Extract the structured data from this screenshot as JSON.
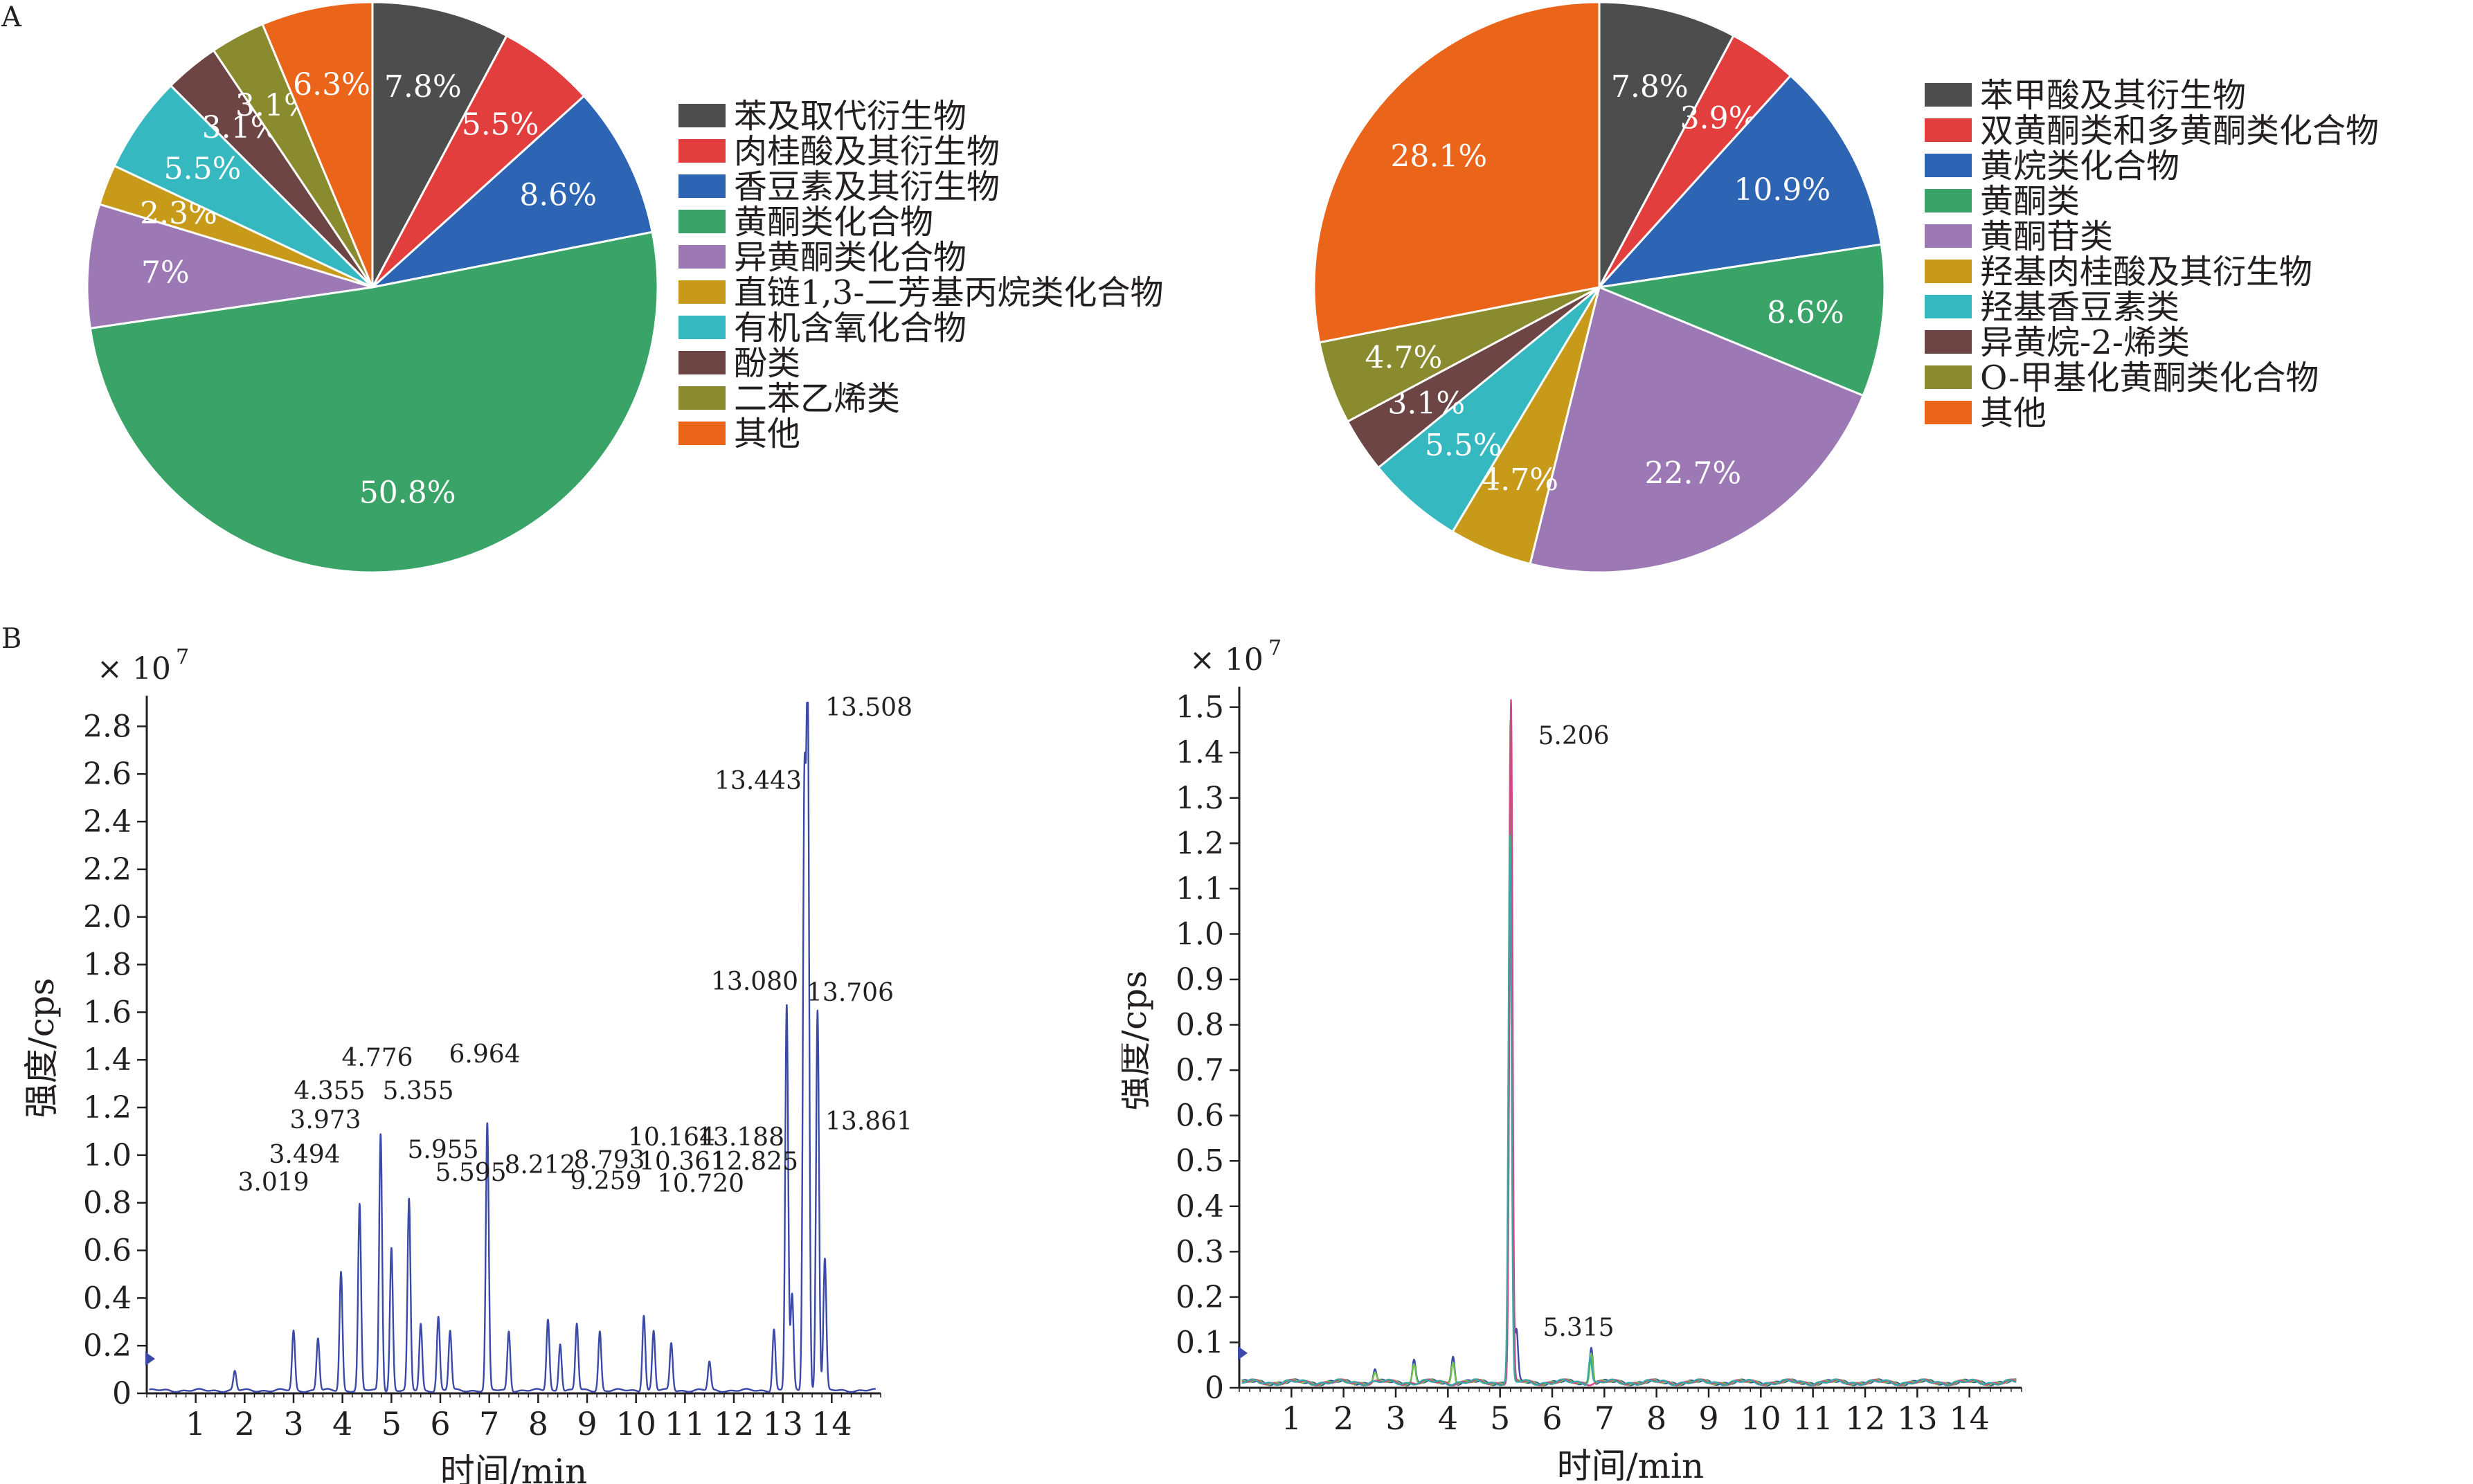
{
  "panels": {
    "a": "A",
    "b": "B"
  },
  "chart_data": [
    {
      "type": "pie",
      "slices": [
        {
          "label": "苯及取代衍生物",
          "value": 7.8,
          "text": "7.8%",
          "color": "#4d4d4d"
        },
        {
          "label": "肉桂酸及其衍生物",
          "value": 5.5,
          "text": "5.5%",
          "color": "#e33e3e"
        },
        {
          "label": "香豆素及其衍生物",
          "value": 8.6,
          "text": "8.6%",
          "color": "#2d64b3"
        },
        {
          "label": "黄酮类化合物",
          "value": 50.8,
          "text": "50.8%",
          "color": "#3aa468"
        },
        {
          "label": "异黄酮类化合物",
          "value": 7.0,
          "text": "7%",
          "color": "#9c79b5"
        },
        {
          "label": "直链1,3-二芳基丙烷类化合物",
          "value": 2.3,
          "text": "2.3%",
          "color": "#c89a1a"
        },
        {
          "label": "有机含氧化合物",
          "value": 5.5,
          "text": "5.5%",
          "color": "#36b8c0"
        },
        {
          "label": "酚类",
          "value": 3.1,
          "text": "3.1%",
          "color": "#6e4545"
        },
        {
          "label": "二苯乙烯类",
          "value": 3.1,
          "text": "3.1%",
          "color": "#8a8b2e"
        },
        {
          "label": "其他",
          "value": 6.3,
          "text": "6.3%",
          "color": "#ea6419"
        }
      ],
      "legend_position": "right"
    },
    {
      "type": "pie",
      "slices": [
        {
          "label": "苯甲酸及其衍生物",
          "value": 7.8,
          "text": "7.8%",
          "color": "#4d4d4d"
        },
        {
          "label": "双黄酮类和多黄酮类化合物",
          "value": 3.9,
          "text": "3.9%",
          "color": "#e33e3e"
        },
        {
          "label": "黄烷类化合物",
          "value": 10.9,
          "text": "10.9%",
          "color": "#2d64b3"
        },
        {
          "label": "黄酮类",
          "value": 8.6,
          "text": "8.6%",
          "color": "#3aa468"
        },
        {
          "label": "黄酮苷类",
          "value": 22.7,
          "text": "22.7%",
          "color": "#9c79b5"
        },
        {
          "label": "羟基肉桂酸及其衍生物",
          "value": 4.7,
          "text": "4.7%",
          "color": "#c89a1a"
        },
        {
          "label": "羟基香豆素类",
          "value": 5.5,
          "text": "5.5%",
          "color": "#36b8c0"
        },
        {
          "label": "异黄烷-2-烯类",
          "value": 3.1,
          "text": "3.1%",
          "color": "#6e4545"
        },
        {
          "label": "O-甲基化黄酮类化合物",
          "value": 4.7,
          "text": "4.7%",
          "color": "#8a8b2e"
        },
        {
          "label": "其他",
          "value": 28.1,
          "text": "28.1%",
          "color": "#ea6419"
        }
      ],
      "legend_position": "right"
    },
    {
      "type": "line",
      "xlabel": "时间/min",
      "ylabel": "强度/cps",
      "y_multiplier": "× 10",
      "y_exponent": "7",
      "xlim": [
        0,
        15
      ],
      "ylim": [
        0,
        2.9
      ],
      "xticks": [
        "1",
        "2",
        "3",
        "4",
        "5",
        "6",
        "7",
        "8",
        "9",
        "10",
        "11",
        "12",
        "13",
        "14"
      ],
      "yticks": [
        "0",
        "0.2",
        "0.4",
        "0.6",
        "0.8",
        "1.0",
        "1.2",
        "1.4",
        "1.6",
        "1.8",
        "2.0",
        "2.2",
        "2.4",
        "2.6",
        "2.8"
      ],
      "line_color": "#3b4aa8",
      "peaks": [
        [
          1.8,
          0.08
        ],
        [
          3.0,
          0.25
        ],
        [
          3.5,
          0.22
        ],
        [
          3.97,
          0.5
        ],
        [
          4.35,
          0.78
        ],
        [
          4.78,
          1.08
        ],
        [
          5.0,
          0.6
        ],
        [
          5.36,
          0.8
        ],
        [
          5.6,
          0.28
        ],
        [
          5.96,
          0.31
        ],
        [
          6.2,
          0.25
        ],
        [
          6.96,
          1.12
        ],
        [
          7.4,
          0.25
        ],
        [
          8.2,
          0.3
        ],
        [
          8.45,
          0.2
        ],
        [
          8.79,
          0.28
        ],
        [
          9.26,
          0.25
        ],
        [
          10.16,
          0.32
        ],
        [
          10.36,
          0.25
        ],
        [
          10.72,
          0.2
        ],
        [
          11.5,
          0.12
        ],
        [
          12.82,
          0.26
        ],
        [
          13.08,
          1.62
        ],
        [
          13.19,
          0.4
        ],
        [
          13.44,
          2.43
        ],
        [
          13.51,
          2.84
        ],
        [
          13.71,
          1.6
        ],
        [
          13.86,
          0.55
        ]
      ],
      "peak_labels": [
        {
          "x": 3.019,
          "text": "3.019"
        },
        {
          "x": 3.494,
          "text": "3.494"
        },
        {
          "x": 3.973,
          "text": "3.973"
        },
        {
          "x": 4.355,
          "text": "4.355"
        },
        {
          "x": 4.776,
          "text": "4.776"
        },
        {
          "x": 5.355,
          "text": "5.355"
        },
        {
          "x": 5.955,
          "text": "5.955"
        },
        {
          "x": 5.595,
          "text": "5.595"
        },
        {
          "x": 6.964,
          "text": "6.964"
        },
        {
          "x": 8.212,
          "text": "8.212"
        },
        {
          "x": 8.793,
          "text": "8.793"
        },
        {
          "x": 9.259,
          "text": "9.259"
        },
        {
          "x": 10.164,
          "text": "10.164"
        },
        {
          "x": 10.361,
          "text": "10.361"
        },
        {
          "x": 10.72,
          "text": "10.720"
        },
        {
          "x": 13.188,
          "text": "13.188"
        },
        {
          "x": 12.825,
          "text": "12.825"
        },
        {
          "x": 13.08,
          "text": "13.080"
        },
        {
          "x": 13.443,
          "text": "13.443"
        },
        {
          "x": 13.508,
          "text": "13.508"
        },
        {
          "x": 13.706,
          "text": "13.706"
        },
        {
          "x": 13.861,
          "text": "13.861"
        }
      ]
    },
    {
      "type": "line",
      "xlabel": "时间/min",
      "ylabel": "强度/cps",
      "y_multiplier": "× 10",
      "y_exponent": "7",
      "xlim": [
        0,
        15
      ],
      "ylim": [
        0,
        1.53
      ],
      "xticks": [
        "1",
        "2",
        "3",
        "4",
        "5",
        "6",
        "7",
        "8",
        "9",
        "10",
        "11",
        "12",
        "13",
        "14"
      ],
      "yticks": [
        "0",
        "0.1",
        "0.2",
        "0.3",
        "0.4",
        "0.5",
        "0.6",
        "0.7",
        "0.8",
        "0.9",
        "1.0",
        "1.1",
        "1.2",
        "1.3",
        "1.4",
        "1.5"
      ],
      "series": [
        {
          "color": "#3b4aa8",
          "peaks": [
            [
              2.6,
              0.03
            ],
            [
              3.35,
              0.05
            ],
            [
              4.1,
              0.06
            ],
            [
              5.206,
              1.36
            ],
            [
              5.315,
              0.11
            ],
            [
              6.75,
              0.08
            ]
          ]
        },
        {
          "color": "#6fc24a",
          "peaks": [
            [
              2.6,
              0.02
            ],
            [
              3.35,
              0.04
            ],
            [
              4.1,
              0.05
            ],
            [
              5.2,
              1.46
            ],
            [
              6.75,
              0.07
            ]
          ]
        },
        {
          "color": "#d6458a",
          "peaks": [
            [
              5.21,
              1.5
            ]
          ]
        },
        {
          "color": "#3aa8a0",
          "peaks": [
            [
              5.19,
              1.2
            ],
            [
              6.73,
              0.06
            ]
          ]
        }
      ],
      "peak_labels": [
        {
          "x": 5.206,
          "text": "5.206"
        },
        {
          "x": 5.315,
          "text": "5.315"
        }
      ]
    }
  ]
}
